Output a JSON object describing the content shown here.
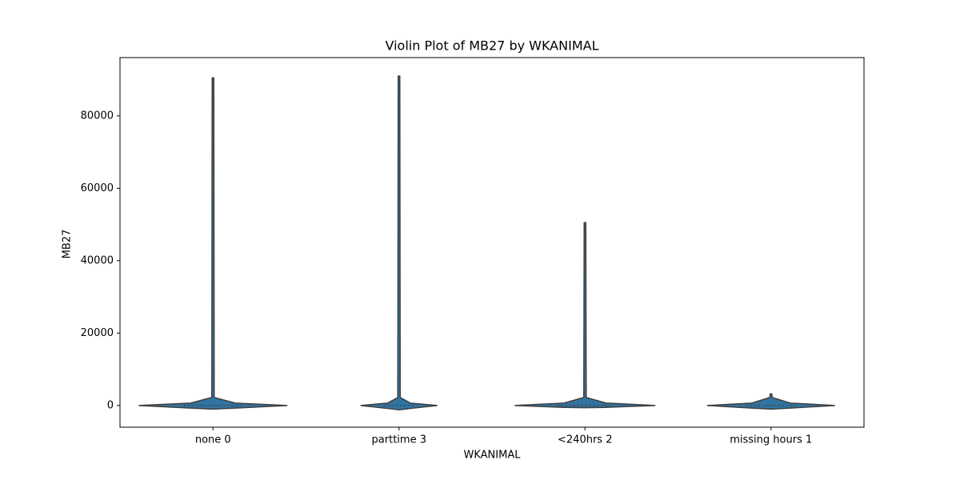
{
  "chart_data": {
    "type": "violin",
    "title": "Violin Plot of MB27 by WKANIMAL",
    "x_label": "WKANIMAL",
    "y_label": "MB27",
    "categories": [
      "none 0",
      "parttime 3",
      "<240hrs 2",
      "missing hours 1"
    ],
    "max": [
      90500,
      91000,
      50500,
      3200
    ],
    "min": [
      -1000,
      -1200,
      -600,
      -1000
    ],
    "color": "#3274a1",
    "ylim": [
      -6000,
      96100
    ],
    "yticks": [
      0,
      20000,
      40000,
      60000,
      80000
    ]
  }
}
